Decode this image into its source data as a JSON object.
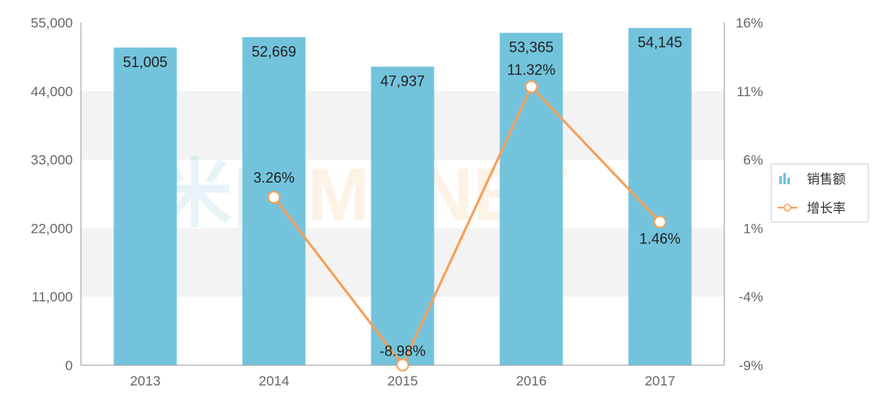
{
  "chart_data": {
    "type": "bar",
    "categories": [
      "2013",
      "2014",
      "2015",
      "2016",
      "2017"
    ],
    "series": [
      {
        "name": "销售额",
        "type": "bar",
        "axis": "left",
        "values": [
          51005,
          52669,
          47937,
          53365,
          54145
        ],
        "labels": [
          "51,005",
          "52,669",
          "47,937",
          "53,365",
          "54,145"
        ],
        "color": "#73c3dc"
      },
      {
        "name": "增长率",
        "type": "line",
        "axis": "right",
        "values": [
          null,
          3.26,
          -8.98,
          11.32,
          1.46
        ],
        "labels": [
          "",
          "3.26%",
          "-8.98%",
          "11.32%",
          "1.46%"
        ],
        "color": "#f5a05a"
      }
    ],
    "y_left": {
      "ylim": [
        0,
        55000
      ],
      "ticks": [
        0,
        11000,
        22000,
        33000,
        44000,
        55000
      ],
      "tick_labels": [
        "0",
        "11,000",
        "22,000",
        "33,000",
        "44,000",
        "55,000"
      ]
    },
    "y_right": {
      "ylim": [
        -9,
        16
      ],
      "ticks": [
        -9,
        -4,
        1,
        6,
        11,
        16
      ],
      "tick_labels": [
        "-9%",
        "-4%",
        "1%",
        "6%",
        "11%",
        "16%"
      ]
    },
    "grid": "alternating horizontal bands",
    "legend_placement": "right"
  },
  "watermark": {
    "part_a": "米内",
    "part_b": "MENET"
  }
}
